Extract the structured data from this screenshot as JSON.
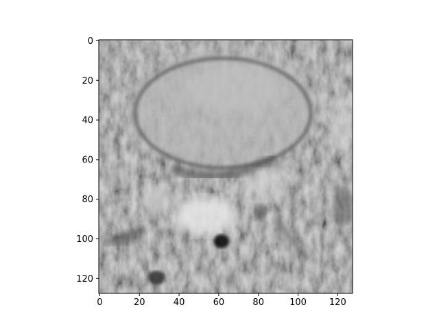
{
  "figure": {
    "background": "#ffffff",
    "image_description_colors": {
      "base_gray": "#9b9b9b",
      "light_gray": "#c8c8c8",
      "dark_gray": "#5a5a5a",
      "black_spot": "#0a0a0a"
    }
  },
  "axes": {
    "x_ticks": [
      "0",
      "20",
      "40",
      "60",
      "80",
      "100",
      "120"
    ],
    "y_ticks": [
      "0",
      "20",
      "40",
      "60",
      "80",
      "100",
      "120"
    ],
    "x_range": [
      -0.5,
      127.5
    ],
    "y_range": [
      -0.5,
      127.5
    ],
    "y_inverted": true
  }
}
